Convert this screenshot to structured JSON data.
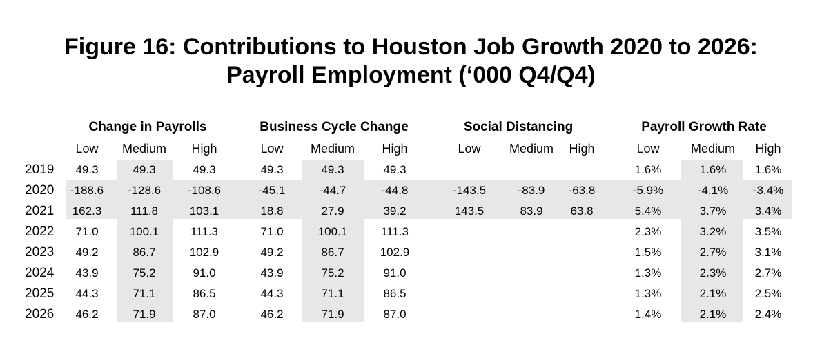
{
  "title": {
    "line1": "Figure 16: Contributions to Houston Job Growth 2020 to 2026:",
    "line2": "Payroll Employment (‘000 Q4/Q4)"
  },
  "groups": [
    "Change in Payrolls",
    "Business Cycle Change",
    "Social Distancing",
    "Payroll Growth Rate"
  ],
  "subheaders": [
    "Low",
    "Medium",
    "High"
  ],
  "rows": [
    {
      "year": "2019",
      "values": [
        "49.3",
        "49.3",
        "49.3",
        "49.3",
        "49.3",
        "49.3",
        "",
        "",
        "",
        "1.6%",
        "1.6%",
        "1.6%"
      ]
    },
    {
      "year": "2020",
      "values": [
        "-188.6",
        "-128.6",
        "-108.6",
        "-45.1",
        "-44.7",
        "-44.8",
        "-143.5",
        "-83.9",
        "-63.8",
        "-5.9%",
        "-4.1%",
        "-3.4%"
      ]
    },
    {
      "year": "2021",
      "values": [
        "162.3",
        "111.8",
        "103.1",
        "18.8",
        "27.9",
        "39.2",
        "143.5",
        "83.9",
        "63.8",
        "5.4%",
        "3.7%",
        "3.4%"
      ]
    },
    {
      "year": "2022",
      "values": [
        "71.0",
        "100.1",
        "111.3",
        "71.0",
        "100.1",
        "111.3",
        "",
        "",
        "",
        "2.3%",
        "3.2%",
        "3.5%"
      ]
    },
    {
      "year": "2023",
      "values": [
        "49.2",
        "86.7",
        "102.9",
        "49.2",
        "86.7",
        "102.9",
        "",
        "",
        "",
        "1.5%",
        "2.7%",
        "3.1%"
      ]
    },
    {
      "year": "2024",
      "values": [
        "43.9",
        "75.2",
        "91.0",
        "43.9",
        "75.2",
        "91.0",
        "",
        "",
        "",
        "1.3%",
        "2.3%",
        "2.7%"
      ]
    },
    {
      "year": "2025",
      "values": [
        "44.3",
        "71.1",
        "86.5",
        "44.3",
        "71.1",
        "86.5",
        "",
        "",
        "",
        "1.3%",
        "2.1%",
        "2.5%"
      ]
    },
    {
      "year": "2026",
      "values": [
        "46.2",
        "71.9",
        "87.0",
        "46.2",
        "71.9",
        "87.0",
        "",
        "",
        "",
        "1.4%",
        "2.1%",
        "2.4%"
      ]
    }
  ]
}
